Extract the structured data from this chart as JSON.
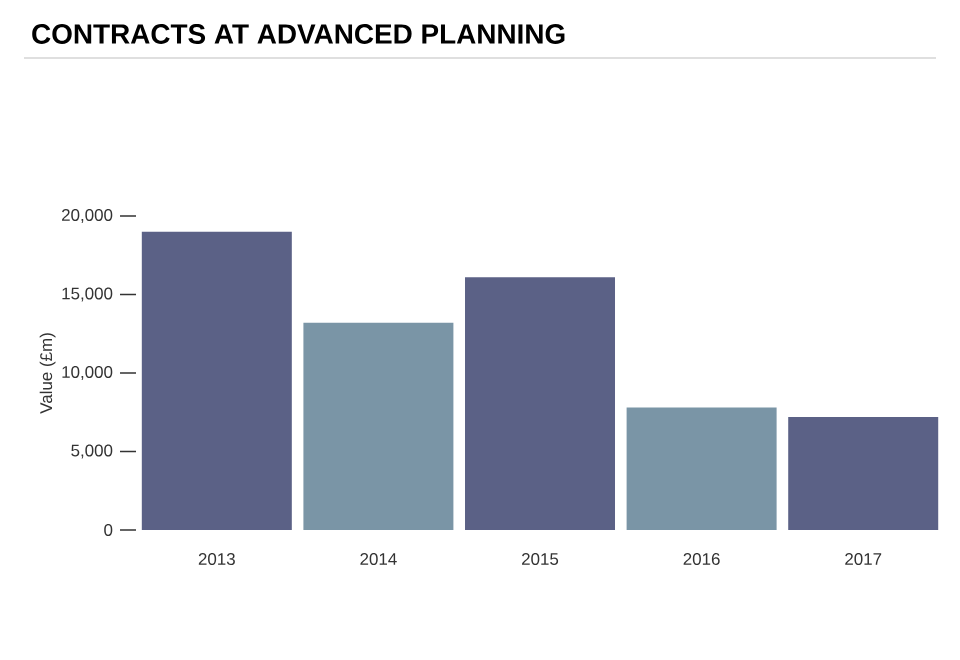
{
  "chart_data": {
    "type": "bar",
    "title": "CONTRACTS AT ADVANCED PLANNING",
    "ylabel": "Value (£m)",
    "categories": [
      "2013",
      "2014",
      "2015",
      "2016",
      "2017"
    ],
    "values": [
      19000,
      13200,
      16100,
      7800,
      7200
    ],
    "colors": [
      "#5b6186",
      "#7a95a6",
      "#5b6186",
      "#7a95a6",
      "#5b6186"
    ],
    "ylim": [
      0,
      20000
    ],
    "yticks": [
      {
        "value": 0,
        "label": "0"
      },
      {
        "value": 5000,
        "label": "5,000"
      },
      {
        "value": 10000,
        "label": "10,000"
      },
      {
        "value": 15000,
        "label": "15,000"
      },
      {
        "value": 20000,
        "label": "20,000"
      }
    ]
  }
}
